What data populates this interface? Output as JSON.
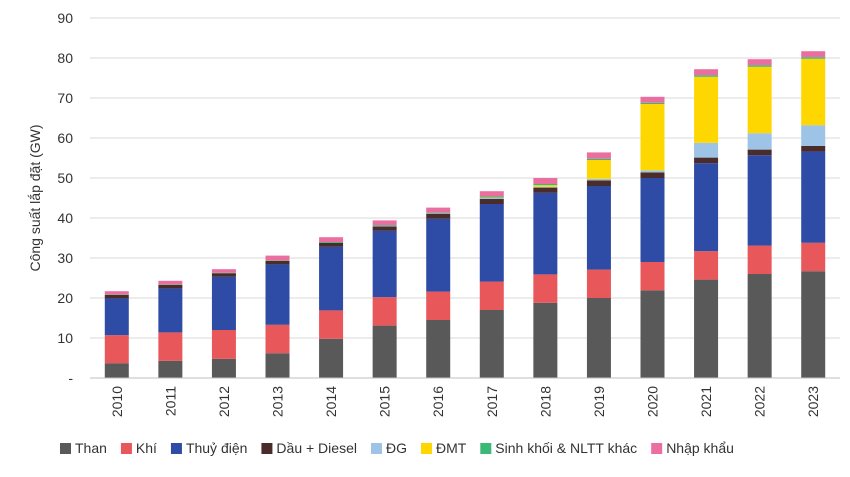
{
  "chart_data": {
    "type": "bar",
    "stacked": true,
    "title": "",
    "xlabel": "",
    "ylabel": "Công suất lắp đặt (GW)",
    "ylim": [
      0,
      90
    ],
    "yticks": [
      0,
      10,
      20,
      30,
      40,
      50,
      60,
      70,
      80,
      90
    ],
    "ytick_labels": [
      "-",
      "10",
      "20",
      "30",
      "40",
      "50",
      "60",
      "70",
      "80",
      "90"
    ],
    "grid": true,
    "legend_position": "bottom",
    "categories": [
      "2010",
      "2011",
      "2012",
      "2013",
      "2014",
      "2015",
      "2016",
      "2017",
      "2018",
      "2019",
      "2020",
      "2021",
      "2022",
      "2023"
    ],
    "series": [
      {
        "name": "Than",
        "color": "#595959",
        "values": [
          3.7,
          4.3,
          4.8,
          6.2,
          9.8,
          13.1,
          14.5,
          17.0,
          18.8,
          20.0,
          21.9,
          24.6,
          26.0,
          26.7
        ]
      },
      {
        "name": "Khí",
        "color": "#e8575a",
        "values": [
          7.0,
          7.1,
          7.2,
          7.1,
          7.1,
          7.1,
          7.1,
          7.1,
          7.1,
          7.1,
          7.1,
          7.1,
          7.1,
          7.1
        ]
      },
      {
        "name": "Thuỷ điện",
        "color": "#2e4ba6",
        "values": [
          9.2,
          11.0,
          13.3,
          15.1,
          15.9,
          16.6,
          18.2,
          19.4,
          20.4,
          20.9,
          21.0,
          22.0,
          22.6,
          22.8
        ]
      },
      {
        "name": "Dầu + Diesel",
        "color": "#4a2c2a",
        "values": [
          0.9,
          0.9,
          0.9,
          0.9,
          1.0,
          1.1,
          1.2,
          1.3,
          1.3,
          1.4,
          1.4,
          1.4,
          1.4,
          1.4
        ]
      },
      {
        "name": "ĐG",
        "color": "#9dc3e6",
        "values": [
          0.0,
          0.0,
          0.0,
          0.0,
          0.0,
          0.1,
          0.1,
          0.2,
          0.2,
          0.4,
          0.5,
          3.7,
          4.1,
          5.2
        ]
      },
      {
        "name": "ĐMT",
        "color": "#ffd700",
        "values": [
          0.0,
          0.0,
          0.0,
          0.0,
          0.0,
          0.0,
          0.0,
          0.1,
          0.4,
          4.7,
          16.6,
          16.5,
          16.6,
          16.6
        ]
      },
      {
        "name": "Sinh khối & NLTT khác",
        "color": "#3cb878",
        "values": [
          0.1,
          0.1,
          0.1,
          0.1,
          0.2,
          0.2,
          0.2,
          0.3,
          0.3,
          0.3,
          0.3,
          0.4,
          0.4,
          0.4
        ]
      },
      {
        "name": "Nhập khẩu",
        "color": "#ea6fa0",
        "values": [
          0.8,
          0.9,
          0.9,
          1.2,
          1.2,
          1.2,
          1.3,
          1.3,
          1.5,
          1.6,
          1.5,
          1.5,
          1.5,
          1.5
        ]
      }
    ]
  }
}
